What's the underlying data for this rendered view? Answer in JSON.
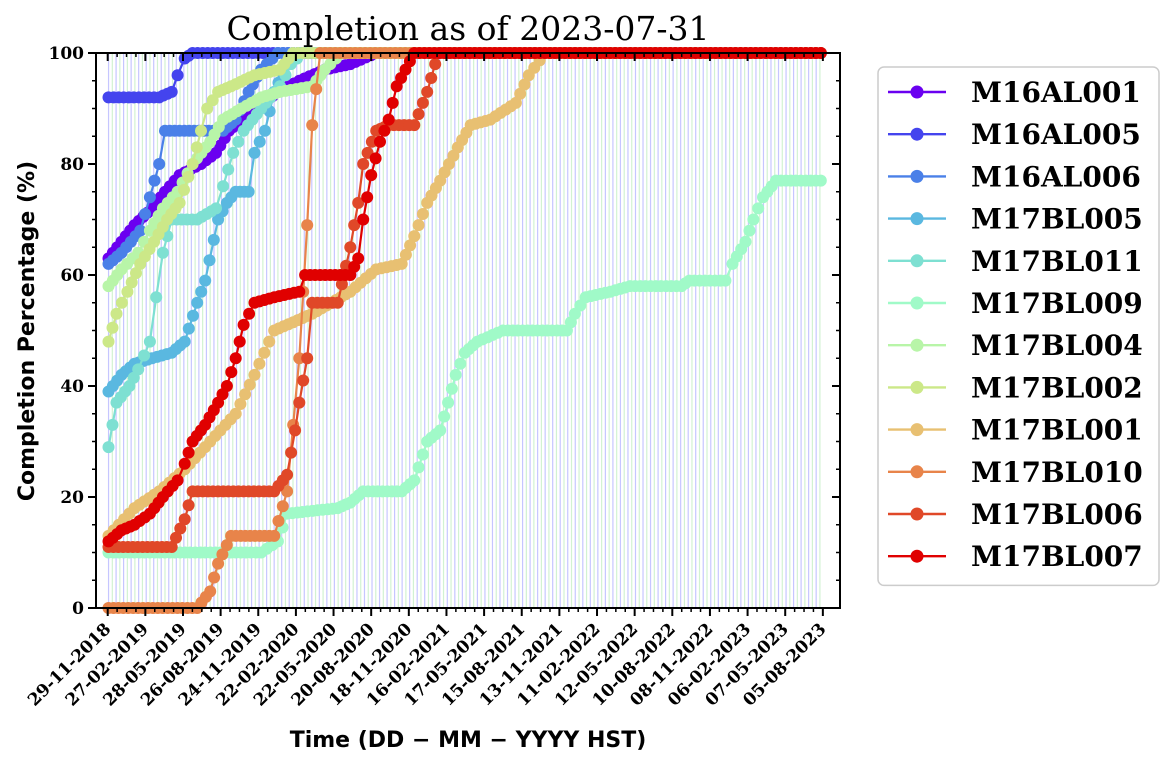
{
  "chart_data": {
    "type": "line",
    "title": "Completion as of 2023-07-31",
    "xlabel": "Time (DD − MM − YYYY HST)",
    "ylabel": "Completion Percentage (%)",
    "x_is_date": true,
    "xlim": [
      "2018-11-01",
      "2023-09-15"
    ],
    "ylim": [
      0,
      100
    ],
    "yticks": [
      0,
      20,
      40,
      60,
      80,
      100
    ],
    "xticks": [
      "2018-11-29",
      "2019-02-27",
      "2019-05-28",
      "2019-08-26",
      "2019-11-24",
      "2020-02-22",
      "2020-05-22",
      "2020-08-20",
      "2020-11-18",
      "2021-02-16",
      "2021-05-17",
      "2021-08-15",
      "2021-11-13",
      "2022-02-11",
      "2022-05-12",
      "2022-08-10",
      "2022-11-08",
      "2023-02-06",
      "2023-05-07",
      "2023-08-05"
    ],
    "xtick_labels": [
      "29-11-2018",
      "27-02-2019",
      "28-05-2019",
      "26-08-2019",
      "24-11-2019",
      "22-02-2020",
      "22-05-2020",
      "20-08-2020",
      "18-11-2020",
      "16-02-2021",
      "17-05-2021",
      "15-08-2021",
      "13-11-2021",
      "11-02-2022",
      "12-05-2022",
      "10-08-2022",
      "08-11-2022",
      "06-02-2023",
      "07-05-2023",
      "05-08-2023"
    ],
    "grid": false,
    "legend_position": "outside-right",
    "observation_lines": {
      "colors": [
        "#b8b8ff",
        "#c8f0c8"
      ],
      "start": "2018-12-01",
      "end": "2023-07-31"
    },
    "series": [
      {
        "name": "M16AL001",
        "color": "#6a00f0",
        "points": [
          [
            "2018-12-01",
            63
          ],
          [
            "2019-01-01",
            66
          ],
          [
            "2019-02-01",
            69
          ],
          [
            "2019-03-15",
            72
          ],
          [
            "2019-04-15",
            75
          ],
          [
            "2019-05-20",
            78
          ],
          [
            "2019-07-10",
            80
          ],
          [
            "2019-08-15",
            82
          ],
          [
            "2019-09-15",
            86
          ],
          [
            "2019-10-15",
            88
          ],
          [
            "2019-11-20",
            90
          ],
          [
            "2020-01-10",
            93
          ],
          [
            "2020-03-01",
            95
          ],
          [
            "2020-05-01",
            97
          ],
          [
            "2020-07-01",
            98
          ],
          [
            "2020-09-01",
            100
          ],
          [
            "2023-07-31",
            100
          ]
        ]
      },
      {
        "name": "M16AL005",
        "color": "#4444ee",
        "points": [
          [
            "2018-12-01",
            92
          ],
          [
            "2019-04-01",
            92
          ],
          [
            "2019-05-01",
            93
          ],
          [
            "2019-05-15",
            96
          ],
          [
            "2019-06-01",
            99
          ],
          [
            "2019-06-20",
            100
          ],
          [
            "2023-07-31",
            100
          ]
        ]
      },
      {
        "name": "M16AL006",
        "color": "#4a80e8",
        "points": [
          [
            "2018-12-01",
            62
          ],
          [
            "2019-01-01",
            64
          ],
          [
            "2019-02-15",
            68
          ],
          [
            "2019-03-10",
            74
          ],
          [
            "2019-04-01",
            80
          ],
          [
            "2019-04-15",
            86
          ],
          [
            "2019-09-01",
            86
          ],
          [
            "2019-10-01",
            88
          ],
          [
            "2019-11-01",
            93
          ],
          [
            "2019-12-01",
            97
          ],
          [
            "2020-01-10",
            100
          ],
          [
            "2023-07-31",
            100
          ]
        ]
      },
      {
        "name": "M17BL005",
        "color": "#5ab8e0",
        "points": [
          [
            "2018-12-01",
            39
          ],
          [
            "2019-01-01",
            42
          ],
          [
            "2019-02-01",
            44
          ],
          [
            "2019-03-15",
            45
          ],
          [
            "2019-05-01",
            46
          ],
          [
            "2019-06-01",
            48
          ],
          [
            "2019-07-01",
            55
          ],
          [
            "2019-07-20",
            59
          ],
          [
            "2019-08-20",
            70
          ],
          [
            "2019-09-10",
            73
          ],
          [
            "2019-10-01",
            75
          ],
          [
            "2019-11-01",
            75
          ],
          [
            "2019-11-15",
            82
          ],
          [
            "2019-12-10",
            86
          ],
          [
            "2020-01-01",
            93
          ],
          [
            "2020-02-01",
            98
          ],
          [
            "2020-03-01",
            100
          ],
          [
            "2023-07-31",
            100
          ]
        ]
      },
      {
        "name": "M17BL011",
        "color": "#7ee0d2",
        "points": [
          [
            "2018-12-01",
            29
          ],
          [
            "2018-12-20",
            37
          ],
          [
            "2019-01-20",
            40
          ],
          [
            "2019-02-10",
            43
          ],
          [
            "2019-03-10",
            48
          ],
          [
            "2019-03-25",
            56
          ],
          [
            "2019-04-10",
            64
          ],
          [
            "2019-05-01",
            70
          ],
          [
            "2019-07-01",
            70
          ],
          [
            "2019-08-15",
            72
          ],
          [
            "2019-09-01",
            76
          ],
          [
            "2019-09-25",
            82
          ],
          [
            "2019-10-20",
            86
          ],
          [
            "2019-12-01",
            90
          ],
          [
            "2020-01-15",
            94
          ],
          [
            "2020-02-10",
            98
          ],
          [
            "2020-03-10",
            100
          ],
          [
            "2023-07-31",
            100
          ]
        ]
      },
      {
        "name": "M17BL009",
        "color": "#a0fac8",
        "points": [
          [
            "2018-12-01",
            10
          ],
          [
            "2019-02-01",
            10
          ],
          [
            "2019-12-01",
            10
          ],
          [
            "2020-01-10",
            12
          ],
          [
            "2020-02-01",
            17
          ],
          [
            "2020-06-01",
            18
          ],
          [
            "2020-07-01",
            19
          ],
          [
            "2020-08-01",
            21
          ],
          [
            "2020-11-01",
            21
          ],
          [
            "2020-12-01",
            23
          ],
          [
            "2021-01-01",
            30
          ],
          [
            "2021-02-01",
            32
          ],
          [
            "2021-02-20",
            37
          ],
          [
            "2021-03-10",
            42
          ],
          [
            "2021-04-01",
            46
          ],
          [
            "2021-05-01",
            48
          ],
          [
            "2021-07-01",
            50
          ],
          [
            "2021-12-01",
            50
          ],
          [
            "2021-12-20",
            53
          ],
          [
            "2022-01-15",
            56
          ],
          [
            "2022-03-15",
            57
          ],
          [
            "2022-05-01",
            58
          ],
          [
            "2022-09-01",
            58
          ],
          [
            "2022-09-20",
            59
          ],
          [
            "2022-12-15",
            59
          ],
          [
            "2023-01-01",
            62
          ],
          [
            "2023-02-01",
            66
          ],
          [
            "2023-02-20",
            70
          ],
          [
            "2023-03-15",
            74
          ],
          [
            "2023-04-15",
            77
          ],
          [
            "2023-07-31",
            77
          ]
        ]
      },
      {
        "name": "M17BL004",
        "color": "#b8f5a8",
        "points": [
          [
            "2018-12-01",
            58
          ],
          [
            "2019-01-01",
            61
          ],
          [
            "2019-02-10",
            64
          ],
          [
            "2019-03-10",
            68
          ],
          [
            "2019-04-10",
            72
          ],
          [
            "2019-05-15",
            75
          ],
          [
            "2019-06-20",
            80
          ],
          [
            "2019-08-01",
            84
          ],
          [
            "2019-09-01",
            88
          ],
          [
            "2019-10-15",
            90
          ],
          [
            "2019-12-01",
            92
          ],
          [
            "2020-01-15",
            93
          ],
          [
            "2020-04-01",
            94
          ],
          [
            "2020-05-01",
            97
          ],
          [
            "2020-06-10",
            100
          ],
          [
            "2023-07-31",
            100
          ]
        ]
      },
      {
        "name": "M17BL002",
        "color": "#cce888",
        "points": [
          [
            "2018-12-01",
            48
          ],
          [
            "2018-12-20",
            53
          ],
          [
            "2019-01-15",
            57
          ],
          [
            "2019-02-15",
            62
          ],
          [
            "2019-03-20",
            66
          ],
          [
            "2019-04-20",
            70
          ],
          [
            "2019-05-20",
            73
          ],
          [
            "2019-06-20",
            80
          ],
          [
            "2019-07-10",
            86
          ],
          [
            "2019-07-25",
            90
          ],
          [
            "2019-08-20",
            93
          ],
          [
            "2019-09-20",
            94
          ],
          [
            "2019-11-15",
            96
          ],
          [
            "2020-01-15",
            97
          ],
          [
            "2020-02-15",
            100
          ],
          [
            "2023-07-31",
            100
          ]
        ]
      },
      {
        "name": "M17BL001",
        "color": "#e8c072",
        "points": [
          [
            "2018-12-01",
            13
          ],
          [
            "2019-02-01",
            18
          ],
          [
            "2019-04-01",
            21
          ],
          [
            "2019-06-01",
            25
          ],
          [
            "2019-08-01",
            30
          ],
          [
            "2019-10-01",
            35
          ],
          [
            "2019-11-15",
            42
          ],
          [
            "2020-01-01",
            50
          ],
          [
            "2020-04-01",
            53
          ],
          [
            "2020-07-01",
            57
          ],
          [
            "2020-09-01",
            61
          ],
          [
            "2020-11-01",
            62
          ],
          [
            "2020-12-01",
            67
          ],
          [
            "2021-01-01",
            73
          ],
          [
            "2021-02-01",
            77
          ],
          [
            "2021-03-15",
            83
          ],
          [
            "2021-04-15",
            87
          ],
          [
            "2021-06-01",
            88
          ],
          [
            "2021-08-01",
            91
          ],
          [
            "2021-09-01",
            96
          ],
          [
            "2021-10-10",
            100
          ],
          [
            "2023-07-31",
            100
          ]
        ]
      },
      {
        "name": "M17BL010",
        "color": "#e8844a",
        "points": [
          [
            "2018-12-01",
            0
          ],
          [
            "2019-07-01",
            0
          ],
          [
            "2019-08-01",
            3
          ],
          [
            "2019-08-20",
            8
          ],
          [
            "2019-09-20",
            13
          ],
          [
            "2020-01-01",
            13
          ],
          [
            "2020-02-01",
            21
          ],
          [
            "2020-03-01",
            45
          ],
          [
            "2020-03-20",
            69
          ],
          [
            "2020-04-01",
            87
          ],
          [
            "2020-04-20",
            100
          ],
          [
            "2023-07-31",
            100
          ]
        ]
      },
      {
        "name": "M17BL006",
        "color": "#e04828",
        "points": [
          [
            "2018-12-01",
            11
          ],
          [
            "2019-05-01",
            11
          ],
          [
            "2019-06-01",
            16
          ],
          [
            "2019-06-20",
            21
          ],
          [
            "2020-01-01",
            21
          ],
          [
            "2020-02-01",
            24
          ],
          [
            "2020-02-20",
            32
          ],
          [
            "2020-03-01",
            37
          ],
          [
            "2020-03-20",
            45
          ],
          [
            "2020-04-01",
            55
          ],
          [
            "2020-06-01",
            55
          ],
          [
            "2020-07-01",
            65
          ],
          [
            "2020-07-20",
            73
          ],
          [
            "2020-08-01",
            80
          ],
          [
            "2020-09-01",
            86
          ],
          [
            "2020-10-01",
            87
          ],
          [
            "2020-12-01",
            87
          ],
          [
            "2021-01-01",
            93
          ],
          [
            "2021-01-20",
            98
          ],
          [
            "2021-02-01",
            100
          ],
          [
            "2023-07-31",
            100
          ]
        ]
      },
      {
        "name": "M17BL007",
        "color": "#e00000",
        "points": [
          [
            "2018-12-01",
            12
          ],
          [
            "2019-01-01",
            14
          ],
          [
            "2019-02-01",
            15
          ],
          [
            "2019-03-10",
            17
          ],
          [
            "2019-04-10",
            20
          ],
          [
            "2019-05-15",
            23
          ],
          [
            "2019-06-01",
            26
          ],
          [
            "2019-06-20",
            30
          ],
          [
            "2019-07-20",
            33
          ],
          [
            "2019-08-20",
            37
          ],
          [
            "2019-09-10",
            40
          ],
          [
            "2019-10-01",
            45
          ],
          [
            "2019-10-20",
            51
          ],
          [
            "2019-11-15",
            55
          ],
          [
            "2020-01-01",
            56
          ],
          [
            "2020-03-01",
            57
          ],
          [
            "2020-03-15",
            60
          ],
          [
            "2020-07-01",
            60
          ],
          [
            "2020-07-20",
            63
          ],
          [
            "2020-08-01",
            70
          ],
          [
            "2020-08-20",
            78
          ],
          [
            "2020-09-10",
            84
          ],
          [
            "2020-10-01",
            88
          ],
          [
            "2020-10-20",
            94
          ],
          [
            "2020-11-10",
            97
          ],
          [
            "2020-12-01",
            100
          ],
          [
            "2023-07-31",
            100
          ]
        ]
      }
    ]
  }
}
